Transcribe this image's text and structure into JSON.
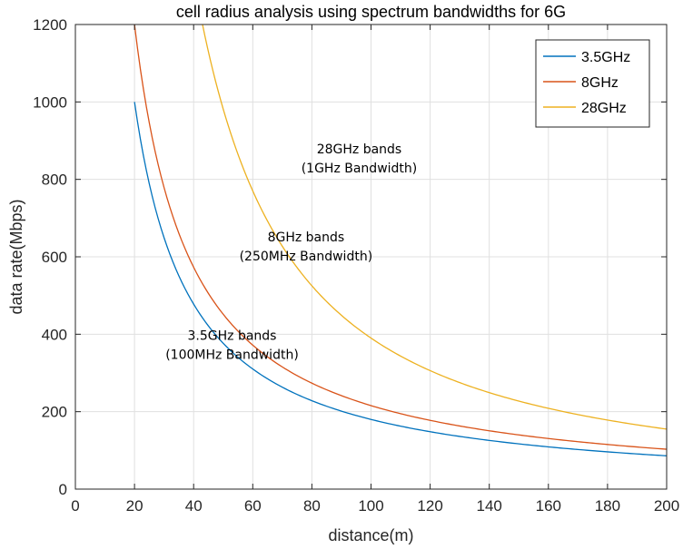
{
  "chart_data": {
    "type": "line",
    "title": "cell radius analysis using spectrum bandwidths for 6G",
    "xlabel": "distance(m)",
    "ylabel": "data rate(Mbps)",
    "xlim": [
      0,
      200
    ],
    "ylim": [
      0,
      1200
    ],
    "xticks": [
      0,
      20,
      40,
      60,
      80,
      100,
      120,
      140,
      160,
      180,
      200
    ],
    "yticks": [
      0,
      200,
      400,
      600,
      800,
      1000,
      1200
    ],
    "grid": true,
    "legend_position": "top-right",
    "series": [
      {
        "name": "3.5GHz",
        "color": "#0072BD",
        "x_start": 20,
        "x_end": 200,
        "y_at_x_start": 1000,
        "y_at_x_end": 86
      },
      {
        "name": "8GHz",
        "color": "#D95319",
        "x_start": 20,
        "x_end": 200,
        "y_at_x_start": 1200,
        "y_at_x_end": 103
      },
      {
        "name": "28GHz",
        "color": "#EDB120",
        "x_start": 43,
        "x_end": 200,
        "y_at_x_start": 1200,
        "y_at_x_end": 155
      }
    ],
    "annotations": [
      {
        "lines": [
          "28GHz bands",
          "(1GHz Bandwidth)"
        ],
        "x": 96,
        "y": 867
      },
      {
        "lines": [
          "8GHz bands",
          "(250MHz Bandwidth)"
        ],
        "x": 78,
        "y": 640
      },
      {
        "lines": [
          "3.5GHz bands",
          "(100MHz Bandwidth)"
        ],
        "x": 53,
        "y": 385
      }
    ]
  }
}
